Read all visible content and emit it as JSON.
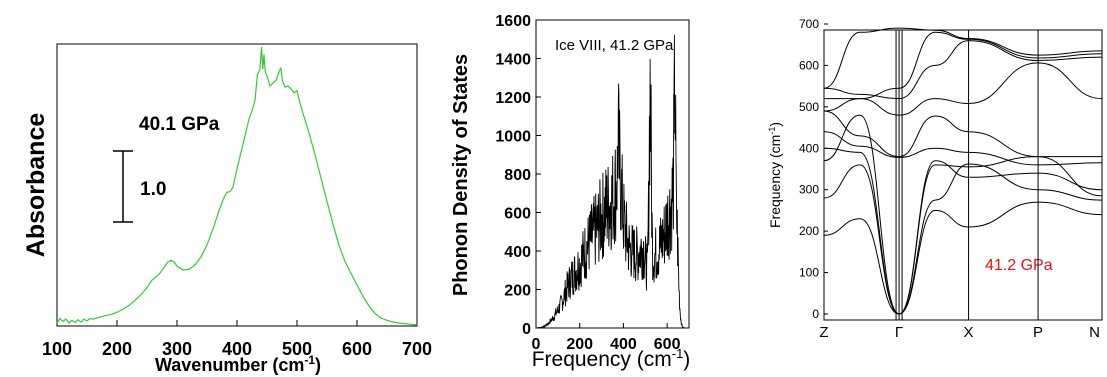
{
  "chart_data": [
    {
      "type": "line",
      "title": "",
      "xlabel": "Wavenumber (cm",
      "xlabel_sup": "-1",
      "xlabel_close": ")",
      "ylabel": "Absorbance",
      "xlim": [
        100,
        700
      ],
      "x_ticks": [
        "100",
        "200",
        "300",
        "400",
        "500",
        "600",
        "700"
      ],
      "annotation": "40.1 GPa",
      "scale_bar_label": "1.0",
      "scale_bar_value": 1.0,
      "y_ticks_labeled": false,
      "line_color": "#33cc33",
      "series": [
        {
          "x": [
            100,
            105,
            110,
            115,
            120,
            125,
            130,
            135,
            140,
            145,
            150,
            155,
            160,
            170,
            180,
            190,
            200,
            210,
            220,
            230,
            240,
            250,
            258,
            265,
            272,
            280,
            285,
            290,
            295,
            300,
            310,
            320,
            330,
            340,
            350,
            360,
            370,
            378,
            383,
            388,
            393,
            400,
            410,
            420,
            425,
            430,
            434,
            438,
            441,
            443,
            445,
            447,
            450,
            455,
            460,
            465,
            470,
            473,
            476,
            480,
            485,
            490,
            495,
            500,
            505,
            510,
            520,
            530,
            540,
            550,
            560,
            570,
            580,
            590,
            600,
            610,
            620,
            630,
            640,
            650,
            660,
            670,
            680,
            690,
            700
          ],
          "y": [
            0.05,
            0.13,
            0.08,
            0.12,
            0.05,
            0.1,
            0.06,
            0.11,
            0.07,
            0.12,
            0.09,
            0.13,
            0.12,
            0.15,
            0.18,
            0.2,
            0.24,
            0.29,
            0.36,
            0.45,
            0.55,
            0.67,
            0.8,
            0.86,
            0.93,
            1.05,
            1.12,
            1.15,
            1.12,
            1.05,
            0.98,
            0.99,
            1.07,
            1.21,
            1.42,
            1.7,
            2.02,
            2.24,
            2.34,
            2.35,
            2.42,
            2.75,
            3.18,
            3.62,
            3.76,
            3.95,
            4.4,
            4.48,
            4.88,
            4.5,
            4.75,
            4.45,
            4.38,
            4.2,
            4.25,
            4.3,
            4.44,
            4.52,
            4.28,
            4.18,
            4.2,
            4.15,
            4.08,
            4.12,
            3.9,
            3.72,
            3.38,
            3.0,
            2.59,
            2.18,
            1.78,
            1.41,
            1.13,
            0.92,
            0.72,
            0.52,
            0.35,
            0.22,
            0.14,
            0.1,
            0.07,
            0.05,
            0.04,
            0.03,
            0.02
          ]
        }
      ]
    },
    {
      "type": "line",
      "title": "",
      "annotation": "Ice VIII, 41.2 GPa",
      "xlabel": "Frequency (cm",
      "xlabel_sup": "-1",
      "xlabel_close": ")",
      "ylabel": "Phonon Density of States",
      "xlim": [
        0,
        700
      ],
      "ylim": [
        0,
        1600
      ],
      "x_ticks": [
        "0",
        "200",
        "400",
        "600"
      ],
      "y_ticks": [
        "0",
        "200",
        "400",
        "600",
        "800",
        "1000",
        "1200",
        "1400",
        "1600"
      ],
      "line_color": "#000000",
      "envelope": {
        "x": [
          0,
          20,
          40,
          60,
          80,
          100,
          120,
          140,
          160,
          180,
          200,
          220,
          240,
          260,
          280,
          300,
          320,
          340,
          355,
          365,
          372,
          376,
          380,
          385,
          390,
          395,
          400,
          410,
          420,
          430,
          440,
          450,
          460,
          470,
          480,
          490,
          500,
          510,
          515,
          520,
          523,
          526,
          529,
          532,
          536,
          540,
          550,
          560,
          570,
          580,
          590,
          600,
          610,
          620,
          628,
          632,
          635,
          638,
          642,
          646,
          650,
          655,
          660,
          665,
          670,
          680,
          690,
          700
        ],
        "y": [
          0,
          3,
          10,
          30,
          60,
          100,
          150,
          220,
          280,
          320,
          360,
          420,
          470,
          520,
          560,
          620,
          670,
          700,
          740,
          790,
          860,
          1150,
          940,
          860,
          780,
          700,
          620,
          540,
          480,
          440,
          430,
          420,
          410,
          430,
          440,
          460,
          380,
          330,
          650,
          1200,
          1450,
          1050,
          760,
          470,
          420,
          400,
          420,
          440,
          470,
          500,
          540,
          600,
          650,
          700,
          800,
          1100,
          1460,
          1100,
          640,
          560,
          390,
          200,
          80,
          30,
          5,
          0,
          0,
          0
        ]
      }
    },
    {
      "type": "line",
      "title": "",
      "xlabel": "",
      "ylabel": "Frequency (cm",
      "ylabel_sup": "-1",
      "ylabel_close": ")",
      "ylim": [
        0,
        700
      ],
      "y_ticks": [
        "0",
        "100",
        "200",
        "300",
        "400",
        "500",
        "600",
        "700"
      ],
      "x_ticks": [
        "Z",
        "Γ",
        "X",
        "P",
        "N"
      ],
      "annotation": "41.2 GPa",
      "annotation_color": "#ee1111",
      "line_color": "#000000",
      "bands": [
        [
          190,
          230,
          0,
          250,
          210,
          270,
          240
        ],
        [
          280,
          360,
          0,
          275,
          362,
          300,
          275
        ],
        [
          370,
          480,
          0,
          360,
          355,
          380,
          285
        ],
        [
          400,
          390,
          0,
          370,
          330,
          340,
          300
        ],
        [
          440,
          405,
          378,
          400,
          390,
          360,
          365
        ],
        [
          490,
          430,
          380,
          478,
          440,
          380,
          380
        ],
        [
          490,
          520,
          480,
          520,
          508,
          606,
          520
        ],
        [
          545,
          530,
          520,
          600,
          660,
          612,
          620
        ],
        [
          520,
          520,
          545,
          680,
          663,
          618,
          628
        ],
        [
          545,
          680,
          690,
          685,
          665,
          625,
          635
        ]
      ],
      "band_x": [
        0.0,
        0.05,
        0.09,
        0.13,
        0.32,
        0.82,
        1.0
      ]
    }
  ]
}
